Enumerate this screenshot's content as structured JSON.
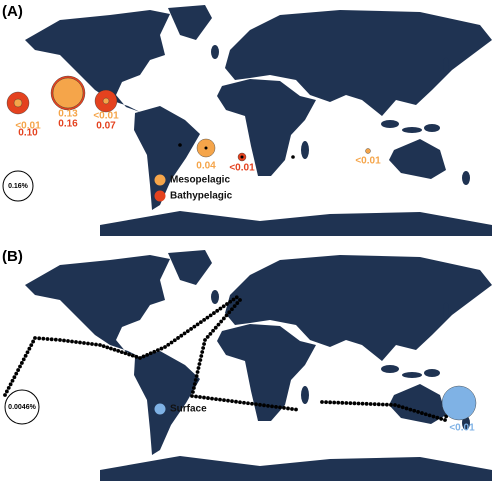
{
  "panels": [
    {
      "label": "(A)",
      "scale_label": "0.16%",
      "legend": [
        {
          "name": "Mesopelagic",
          "color": "#f5a54a"
        },
        {
          "name": "Bathypelagic",
          "color": "#e4421f"
        }
      ],
      "stations": [
        {
          "labels": [
            "<0.01",
            "0.10"
          ]
        },
        {
          "labels": [
            "0.13",
            "0.16"
          ]
        },
        {
          "labels": [
            "<0.01",
            "0.07"
          ]
        },
        {
          "labels": [
            "0.04"
          ]
        },
        {
          "labels": [
            "<0.01"
          ]
        },
        {
          "labels": [
            "<0.01"
          ]
        }
      ]
    },
    {
      "label": "(B)",
      "scale_label": "0.0046%",
      "legend": [
        {
          "name": "Surface",
          "color": "#7fb2e5"
        }
      ],
      "stations": [
        {
          "labels": [
            "<0.01"
          ]
        }
      ]
    }
  ]
}
